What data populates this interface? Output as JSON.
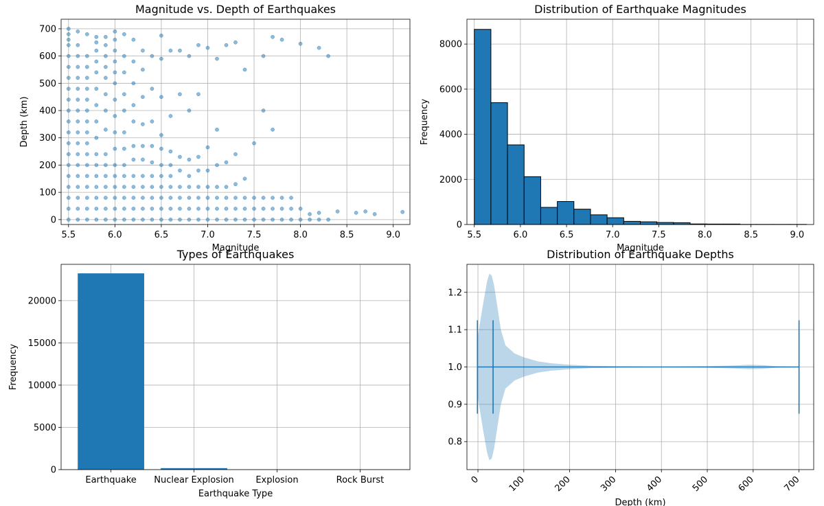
{
  "chart_data": [
    {
      "type": "scatter",
      "title": "Magnitude vs. Depth of Earthquakes",
      "xlabel": "Magnitude",
      "ylabel": "Depth (km)",
      "xlim": [
        5.42,
        9.18
      ],
      "ylim": [
        -18,
        735
      ],
      "xticks": [
        "5.5",
        "6.0",
        "6.5",
        "7.0",
        "7.5",
        "8.0",
        "8.5",
        "9.0"
      ],
      "yticks": [
        "0",
        "100",
        "200",
        "300",
        "400",
        "500",
        "600",
        "700"
      ],
      "grid": true,
      "color": "#1f77b4",
      "alpha": 0.5,
      "x": [
        5.5,
        5.5,
        5.5,
        5.5,
        5.5,
        5.5,
        5.5,
        5.5,
        5.5,
        5.5,
        5.5,
        5.5,
        5.5,
        5.5,
        5.5,
        5.5,
        5.5,
        5.5,
        5.5,
        5.5,
        5.6,
        5.6,
        5.6,
        5.6,
        5.6,
        5.6,
        5.6,
        5.6,
        5.6,
        5.6,
        5.6,
        5.6,
        5.6,
        5.6,
        5.6,
        5.6,
        5.6,
        5.6,
        5.7,
        5.7,
        5.7,
        5.7,
        5.7,
        5.7,
        5.7,
        5.7,
        5.7,
        5.7,
        5.7,
        5.7,
        5.7,
        5.7,
        5.7,
        5.7,
        5.7,
        5.8,
        5.8,
        5.8,
        5.8,
        5.8,
        5.8,
        5.8,
        5.8,
        5.8,
        5.8,
        5.8,
        5.8,
        5.8,
        5.8,
        5.8,
        5.8,
        5.9,
        5.9,
        5.9,
        5.9,
        5.9,
        5.9,
        5.9,
        5.9,
        5.9,
        5.9,
        5.9,
        5.9,
        5.9,
        5.9,
        5.9,
        6.0,
        6.0,
        6.0,
        6.0,
        6.0,
        6.0,
        6.0,
        6.0,
        6.0,
        6.0,
        6.0,
        6.0,
        6.0,
        6.0,
        6.0,
        6.0,
        6.1,
        6.1,
        6.1,
        6.1,
        6.1,
        6.1,
        6.1,
        6.1,
        6.1,
        6.1,
        6.1,
        6.1,
        6.1,
        6.2,
        6.2,
        6.2,
        6.2,
        6.2,
        6.2,
        6.2,
        6.2,
        6.2,
        6.2,
        6.2,
        6.2,
        6.3,
        6.3,
        6.3,
        6.3,
        6.3,
        6.3,
        6.3,
        6.3,
        6.3,
        6.3,
        6.3,
        6.4,
        6.4,
        6.4,
        6.4,
        6.4,
        6.4,
        6.4,
        6.4,
        6.4,
        6.4,
        6.5,
        6.5,
        6.5,
        6.5,
        6.5,
        6.5,
        6.5,
        6.5,
        6.5,
        6.5,
        6.5,
        6.6,
        6.6,
        6.6,
        6.6,
        6.6,
        6.6,
        6.6,
        6.6,
        6.6,
        6.7,
        6.7,
        6.7,
        6.7,
        6.7,
        6.7,
        6.7,
        6.7,
        6.8,
        6.8,
        6.8,
        6.8,
        6.8,
        6.8,
        6.8,
        6.8,
        6.9,
        6.9,
        6.9,
        6.9,
        6.9,
        6.9,
        6.9,
        6.9,
        7.0,
        7.0,
        7.0,
        7.0,
        7.0,
        7.0,
        7.0,
        7.1,
        7.1,
        7.1,
        7.1,
        7.1,
        7.1,
        7.1,
        7.2,
        7.2,
        7.2,
        7.2,
        7.2,
        7.2,
        7.3,
        7.3,
        7.3,
        7.3,
        7.3,
        7.3,
        7.4,
        7.4,
        7.4,
        7.4,
        7.4,
        7.5,
        7.5,
        7.5,
        7.5,
        7.6,
        7.6,
        7.6,
        7.6,
        7.6,
        7.7,
        7.7,
        7.7,
        7.7,
        7.7,
        7.8,
        7.8,
        7.8,
        7.8,
        7.9,
        7.9,
        7.9,
        8.0,
        8.0,
        8.0,
        8.1,
        8.1,
        8.2,
        8.2,
        8.2,
        8.3,
        8.3,
        8.4,
        8.6,
        8.7,
        8.8,
        9.1
      ],
      "y": [
        0,
        40,
        80,
        120,
        160,
        200,
        240,
        280,
        320,
        360,
        400,
        440,
        480,
        520,
        560,
        600,
        640,
        660,
        680,
        700,
        0,
        40,
        80,
        120,
        160,
        200,
        240,
        280,
        320,
        360,
        400,
        440,
        480,
        520,
        560,
        600,
        640,
        690,
        0,
        40,
        80,
        120,
        160,
        200,
        240,
        280,
        320,
        360,
        400,
        440,
        480,
        520,
        560,
        600,
        680,
        0,
        40,
        80,
        120,
        160,
        200,
        240,
        300,
        360,
        420,
        480,
        540,
        580,
        620,
        650,
        670,
        0,
        40,
        80,
        120,
        160,
        200,
        240,
        330,
        400,
        460,
        520,
        560,
        600,
        640,
        670,
        0,
        40,
        80,
        120,
        160,
        200,
        260,
        320,
        380,
        440,
        500,
        540,
        580,
        620,
        660,
        690,
        0,
        40,
        80,
        120,
        160,
        200,
        260,
        320,
        400,
        460,
        540,
        600,
        680,
        0,
        40,
        80,
        120,
        160,
        220,
        270,
        360,
        420,
        500,
        580,
        660,
        0,
        40,
        80,
        120,
        160,
        220,
        270,
        350,
        450,
        550,
        620,
        0,
        40,
        80,
        120,
        160,
        210,
        270,
        360,
        480,
        600,
        0,
        40,
        80,
        120,
        160,
        200,
        260,
        310,
        450,
        590,
        675,
        0,
        40,
        80,
        120,
        160,
        200,
        250,
        380,
        620,
        0,
        40,
        80,
        120,
        180,
        230,
        460,
        620,
        0,
        40,
        80,
        120,
        160,
        220,
        400,
        600,
        0,
        40,
        80,
        120,
        180,
        230,
        460,
        640,
        0,
        40,
        80,
        120,
        180,
        265,
        630,
        0,
        40,
        80,
        120,
        200,
        330,
        590,
        0,
        40,
        80,
        120,
        210,
        640,
        0,
        40,
        80,
        130,
        240,
        650,
        0,
        40,
        80,
        150,
        550,
        0,
        40,
        80,
        280,
        0,
        40,
        80,
        400,
        600,
        0,
        40,
        80,
        330,
        670,
        0,
        40,
        80,
        660,
        0,
        40,
        80,
        0,
        40,
        645,
        0,
        20,
        0,
        25,
        630,
        0,
        600,
        30,
        25,
        30,
        20,
        28
      ]
    },
    {
      "type": "bar",
      "title": "Distribution of Earthquake Magnitudes",
      "xlabel": "Magnitude",
      "ylabel": "Frequency",
      "xlim": [
        5.42,
        9.18
      ],
      "ylim": [
        0,
        9100
      ],
      "xticks": [
        "5.5",
        "6.0",
        "6.5",
        "7.0",
        "7.5",
        "8.0",
        "8.5",
        "9.0"
      ],
      "yticks": [
        "0",
        "2000",
        "4000",
        "6000",
        "8000"
      ],
      "grid": true,
      "color": "#1f77b4",
      "edgecolor": "#000000",
      "bin_start": 5.5,
      "bin_width": 0.18,
      "values": [
        8650,
        5400,
        3530,
        2120,
        760,
        1020,
        680,
        430,
        300,
        140,
        120,
        90,
        80,
        25,
        20,
        20,
        5,
        5,
        5,
        5
      ]
    },
    {
      "type": "bar",
      "title": "Types of Earthquakes",
      "xlabel": "Earthquake Type",
      "ylabel": "Frequency",
      "ylim": [
        0,
        24300
      ],
      "yticks": [
        "0",
        "5000",
        "10000",
        "15000",
        "20000"
      ],
      "grid": true,
      "color": "#1f77b4",
      "categories": [
        "Earthquake",
        "Nuclear Explosion",
        "Explosion",
        "Rock Burst"
      ],
      "values": [
        23232,
        175,
        4,
        1
      ]
    },
    {
      "type": "violin",
      "title": "Distribution of Earthquake Depths",
      "xlabel": "Depth (km)",
      "ylabel": "",
      "xlim": [
        -24,
        732
      ],
      "ylim": [
        0.725,
        1.275
      ],
      "xticks": [
        "0",
        "100",
        "200",
        "300",
        "400",
        "500",
        "600",
        "700"
      ],
      "yticks": [
        "0.8",
        "0.9",
        "1.0",
        "1.1",
        "1.2"
      ],
      "grid": true,
      "color": "#1f77b4",
      "position": 1.0,
      "min": -1.1,
      "median": 33,
      "max": 700,
      "density_x": [
        -1.1,
        10,
        20,
        25,
        30,
        35,
        40,
        50,
        60,
        80,
        100,
        130,
        160,
        200,
        250,
        300,
        400,
        500,
        560,
        590,
        620,
        650,
        700
      ],
      "density_half_width": [
        0.075,
        0.16,
        0.23,
        0.25,
        0.245,
        0.22,
        0.18,
        0.1,
        0.058,
        0.036,
        0.026,
        0.015,
        0.01,
        0.006,
        0.003,
        0.002,
        0.001,
        0.002,
        0.004,
        0.006,
        0.005,
        0.002,
        0.001
      ]
    }
  ]
}
